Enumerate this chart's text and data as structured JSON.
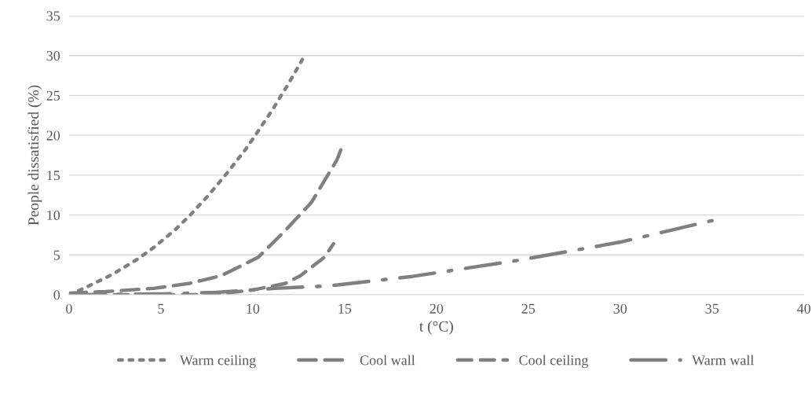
{
  "chart_data": {
    "type": "line",
    "xlabel": "t (°C)",
    "ylabel": "People dissatisfied (%)",
    "xlim": [
      0,
      40
    ],
    "xticks": [
      0,
      5,
      10,
      15,
      20,
      25,
      30,
      35,
      40
    ],
    "ylim": [
      0,
      35
    ],
    "yticks": [
      0,
      5,
      10,
      15,
      20,
      25,
      30,
      35
    ],
    "grid": "y",
    "legend": "bottom",
    "marker": "none",
    "series": [
      {
        "name": "Warm ceiling",
        "color": "#808080",
        "line_style": "dotted",
        "x": [
          0,
          0.9,
          2.4,
          3.75,
          4.6,
          5.8,
          6.6,
          7.6,
          8.65,
          9.6,
          10.2,
          11.1,
          11.9,
          12.7
        ],
        "values": [
          0,
          0.9,
          2.6,
          4.5,
          5.9,
          8.2,
          10,
          12.5,
          15.4,
          18.2,
          20.2,
          23.3,
          26.3,
          29.5
        ]
      },
      {
        "name": "Cool wall",
        "color": "#808080",
        "line_style": "dashed",
        "x": [
          0,
          2,
          4.6,
          6.5,
          8.3,
          10.3,
          11.75,
          13.2,
          14.6,
          14.8
        ],
        "values": [
          0.2,
          0.4,
          0.8,
          1.4,
          2.4,
          4.7,
          8,
          11.6,
          17,
          18.2
        ]
      },
      {
        "name": "Cool ceiling",
        "color": "#808080",
        "line_style": "longdash",
        "x": [
          0,
          3,
          5,
          7,
          8.5,
          10,
          11.75,
          12.6,
          13.9,
          14.4
        ],
        "values": [
          0,
          0,
          0,
          0,
          0.2,
          0.6,
          1.4,
          2.4,
          4.7,
          6.4
        ]
      },
      {
        "name": "Warm wall",
        "color": "#808080",
        "line_style": "longdashdot",
        "x": [
          0,
          5,
          8,
          11.2,
          14.1,
          18.7,
          24.4,
          30,
          35
        ],
        "values": [
          0,
          0.1,
          0.3,
          0.8,
          1.1,
          2.3,
          4.3,
          6.6,
          9.3
        ]
      }
    ]
  }
}
